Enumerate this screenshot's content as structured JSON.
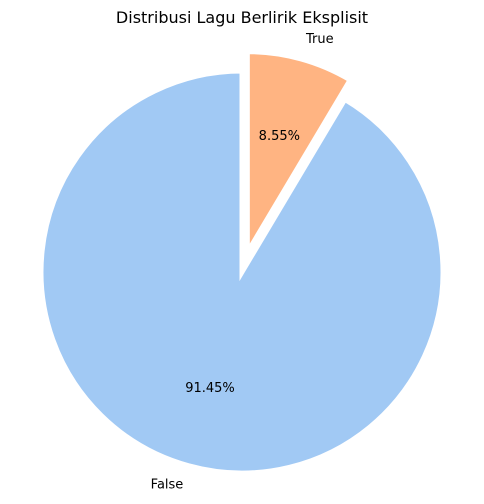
{
  "chart_data": {
    "type": "pie",
    "title": "Distribusi Lagu Berlirik Eksplisit",
    "slices": [
      {
        "label": "True",
        "value": 8.55,
        "pct_label": "8.55%",
        "color": "#ffb482",
        "exploded": true
      },
      {
        "label": "False",
        "value": 91.45,
        "pct_label": "91.45%",
        "color": "#a1c9f4",
        "exploded": false
      }
    ],
    "start_angle": "top",
    "direction": "clockwise"
  }
}
